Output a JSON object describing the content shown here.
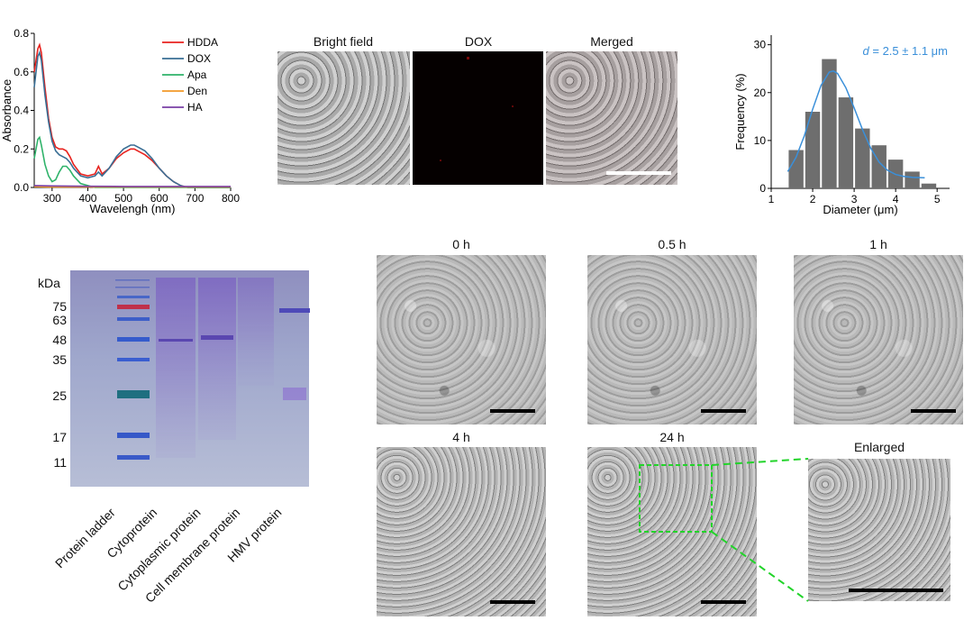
{
  "panel_a": {
    "chart_data": {
      "type": "line",
      "xlabel": "Wavelengh (nm)",
      "ylabel": "Absorbance",
      "xlim": [
        250,
        800
      ],
      "ylim": [
        0,
        0.8
      ],
      "xticks": [
        300,
        400,
        500,
        600,
        700,
        800
      ],
      "yticks": [
        0.0,
        0.2,
        0.4,
        0.6,
        0.8
      ],
      "legend_position": "top-right",
      "series": [
        {
          "name": "HDDA",
          "color": "#e8231f",
          "x": [
            250,
            260,
            265,
            270,
            280,
            290,
            300,
            310,
            320,
            330,
            340,
            350,
            360,
            380,
            400,
            420,
            430,
            440,
            460,
            480,
            500,
            520,
            530,
            540,
            560,
            580,
            600,
            620,
            640,
            660,
            680,
            700,
            750,
            800
          ],
          "y": [
            0.6,
            0.72,
            0.74,
            0.7,
            0.52,
            0.36,
            0.26,
            0.21,
            0.2,
            0.2,
            0.19,
            0.16,
            0.12,
            0.07,
            0.06,
            0.07,
            0.11,
            0.07,
            0.1,
            0.15,
            0.18,
            0.2,
            0.2,
            0.19,
            0.17,
            0.14,
            0.1,
            0.06,
            0.03,
            0.01,
            0.0,
            0.0,
            0.0,
            0.0
          ]
        },
        {
          "name": "DOX",
          "color": "#3a6f95",
          "x": [
            250,
            260,
            265,
            270,
            280,
            290,
            300,
            310,
            320,
            330,
            340,
            350,
            360,
            380,
            400,
            420,
            430,
            440,
            460,
            480,
            500,
            520,
            530,
            540,
            560,
            580,
            600,
            620,
            640,
            660,
            680,
            700,
            750,
            800
          ],
          "y": [
            0.52,
            0.68,
            0.7,
            0.66,
            0.48,
            0.34,
            0.24,
            0.19,
            0.17,
            0.16,
            0.15,
            0.13,
            0.1,
            0.06,
            0.05,
            0.06,
            0.08,
            0.06,
            0.1,
            0.16,
            0.2,
            0.22,
            0.22,
            0.21,
            0.19,
            0.15,
            0.1,
            0.06,
            0.03,
            0.01,
            0.0,
            0.0,
            0.0,
            0.0
          ]
        },
        {
          "name": "Apa",
          "color": "#2fb36a",
          "x": [
            250,
            260,
            265,
            270,
            280,
            290,
            300,
            310,
            320,
            330,
            340,
            350,
            360,
            380,
            400,
            420,
            800
          ],
          "y": [
            0.15,
            0.25,
            0.26,
            0.22,
            0.12,
            0.06,
            0.03,
            0.04,
            0.08,
            0.11,
            0.11,
            0.09,
            0.06,
            0.02,
            0.01,
            0.0,
            0.0
          ]
        },
        {
          "name": "Den",
          "color": "#f39a28",
          "x": [
            250,
            300,
            400,
            500,
            600,
            700,
            800
          ],
          "y": [
            0.004,
            0.003,
            0.003,
            0.003,
            0.003,
            0.003,
            0.003
          ]
        },
        {
          "name": "HA",
          "color": "#7a3fa5",
          "x": [
            250,
            300,
            400,
            500,
            600,
            700,
            800
          ],
          "y": [
            0.01,
            0.008,
            0.006,
            0.005,
            0.005,
            0.005,
            0.005
          ]
        }
      ]
    }
  },
  "panel_b": {
    "labels": [
      "Bright field",
      "DOX",
      "Merged"
    ]
  },
  "panel_c": {
    "chart_data": {
      "type": "bar",
      "xlabel": "Diameter (μm)",
      "ylabel": "Frequency (%)",
      "annotation_var": "d",
      "annotation_rest": " = 2.5 ± 1.1 μm",
      "annotation_color": "#3a8fd9",
      "bar_color": "#6e6e6e",
      "fit_color": "#3a8fd9",
      "xlim": [
        1,
        5.3
      ],
      "ylim": [
        0,
        32
      ],
      "xticks": [
        1,
        2,
        3,
        4,
        5
      ],
      "yticks": [
        0,
        10,
        20,
        30
      ],
      "bin_width": 0.4,
      "bin_centers": [
        1.6,
        2.0,
        2.4,
        2.8,
        3.2,
        3.6,
        4.0,
        4.4,
        4.8
      ],
      "values": [
        8,
        16,
        27,
        19,
        12.5,
        9,
        6,
        3.5,
        1
      ],
      "fit_x": [
        1.4,
        1.6,
        1.8,
        2.0,
        2.2,
        2.4,
        2.5,
        2.6,
        2.8,
        3.0,
        3.2,
        3.4,
        3.6,
        3.8,
        4.0,
        4.2,
        4.4,
        4.7
      ],
      "fit_y": [
        3.5,
        6.5,
        11,
        16.5,
        21.5,
        24.3,
        24.5,
        24,
        21,
        16.8,
        12.3,
        8.4,
        5.5,
        3.8,
        2.9,
        2.5,
        2.3,
        2.2
      ]
    }
  },
  "panel_d": {
    "unit_label": "kDa",
    "markers": [
      "75",
      "63",
      "48",
      "35",
      "25",
      "17",
      "11"
    ],
    "lanes": [
      "Protein ladder",
      "Cytoprotein",
      "Cytoplasmic protein",
      "Cell membrane protein",
      "HMV protein"
    ]
  },
  "panel_e": {
    "labels": [
      "0 h",
      "0.5 h",
      "1 h",
      "4 h",
      "24 h",
      "Enlarged"
    ],
    "zoom_color": "#22d42a"
  }
}
